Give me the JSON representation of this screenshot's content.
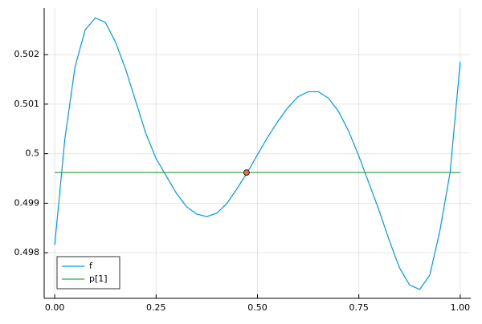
{
  "chart_data": {
    "type": "line",
    "x": [
      0,
      0.025,
      0.05,
      0.075,
      0.1,
      0.125,
      0.15,
      0.175,
      0.2,
      0.225,
      0.25,
      0.275,
      0.3,
      0.325,
      0.35,
      0.375,
      0.4,
      0.425,
      0.45,
      0.475,
      0.5,
      0.525,
      0.55,
      0.575,
      0.6,
      0.625,
      0.65,
      0.675,
      0.7,
      0.725,
      0.75,
      0.775,
      0.8,
      0.825,
      0.85,
      0.875,
      0.9,
      0.925,
      0.95,
      0.975,
      1.0
    ],
    "series": [
      {
        "name": "f",
        "color": "#009af9",
        "values": [
          0.49816,
          0.5003,
          0.50175,
          0.5025,
          0.50274,
          0.50265,
          0.50225,
          0.5017,
          0.50105,
          0.5004,
          0.4999,
          0.49955,
          0.4992,
          0.49893,
          0.49878,
          0.49873,
          0.4988,
          0.499,
          0.4993,
          0.49962,
          0.49998,
          0.50033,
          0.50065,
          0.50093,
          0.50115,
          0.50125,
          0.50125,
          0.50112,
          0.50085,
          0.50045,
          0.49995,
          0.4994,
          0.49885,
          0.49825,
          0.4977,
          0.49735,
          0.49726,
          0.49755,
          0.49845,
          0.49962,
          0.50185
        ]
      },
      {
        "name": "p[1]",
        "color": "#3da44d",
        "x": [
          0,
          1.0
        ],
        "values": [
          0.49962,
          0.49962
        ]
      }
    ],
    "point": {
      "x": 0.473,
      "y": 0.49962,
      "color": "#e26f46"
    },
    "xlim": [
      -0.026,
      1.026
    ],
    "ylim": [
      0.49708,
      0.50294
    ],
    "xticks": [
      {
        "value": 0,
        "label": "0.00"
      },
      {
        "value": 0.25,
        "label": "0.25"
      },
      {
        "value": 0.5,
        "label": "0.50"
      },
      {
        "value": 0.75,
        "label": "0.75"
      },
      {
        "value": 1.0,
        "label": "1.00"
      }
    ],
    "yticks": [
      0.498,
      0.499,
      0.5,
      0.501,
      0.502
    ],
    "grid": true,
    "legend": "bottom-left"
  }
}
